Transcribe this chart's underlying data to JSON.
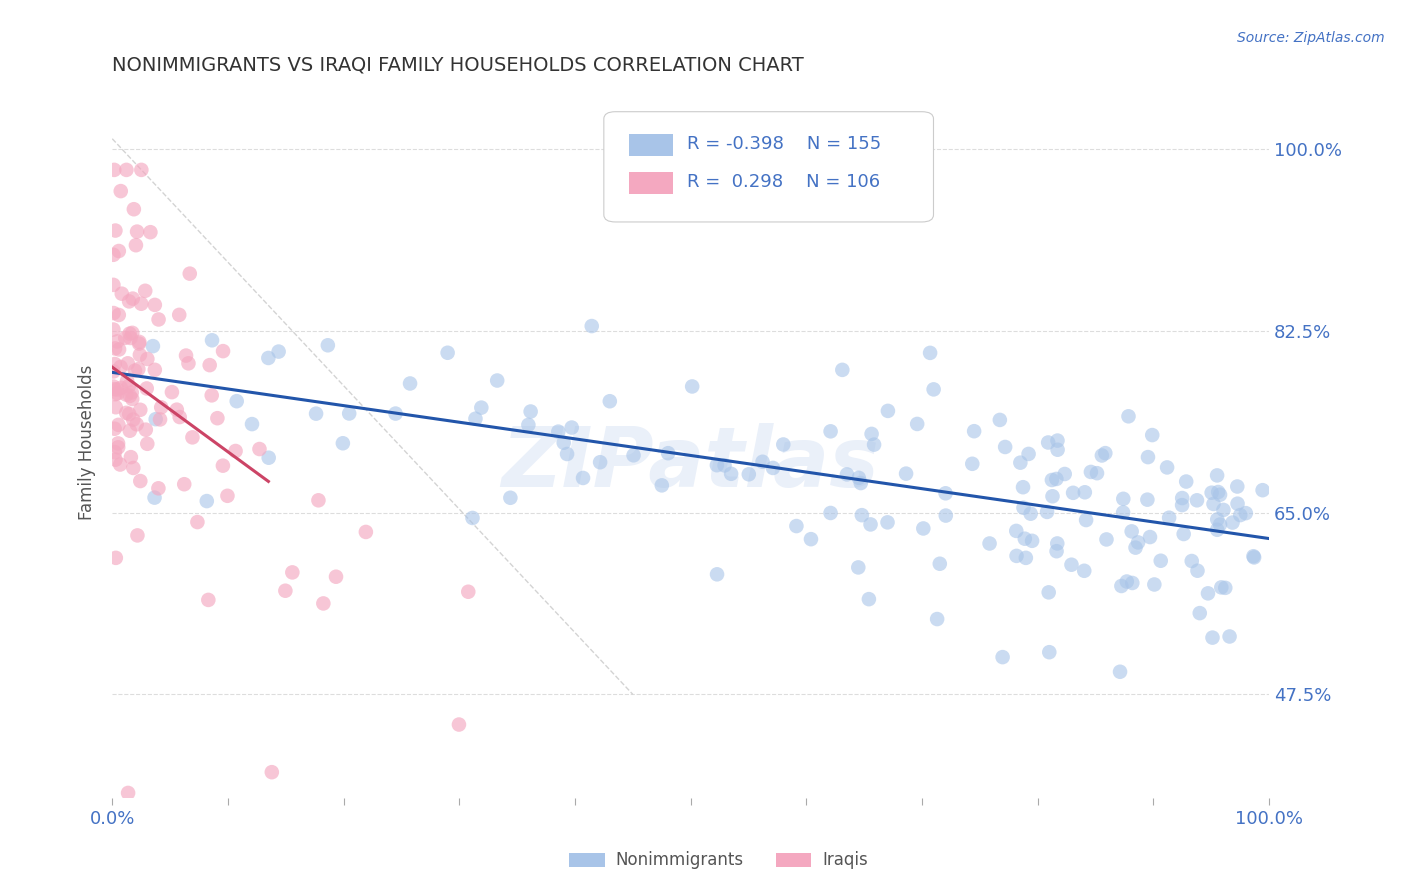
{
  "title": "NONIMMIGRANTS VS IRAQI FAMILY HOUSEHOLDS CORRELATION CHART",
  "source": "Source: ZipAtlas.com",
  "ylabel": "Family Households",
  "yticks": [
    0.475,
    0.65,
    0.825,
    1.0
  ],
  "ytick_labels": [
    "47.5%",
    "65.0%",
    "82.5%",
    "100.0%"
  ],
  "xlim": [
    0.0,
    1.0
  ],
  "ylim": [
    0.375,
    1.06
  ],
  "blue_R": -0.398,
  "blue_N": 155,
  "pink_R": 0.298,
  "pink_N": 106,
  "blue_color": "#a8c4e8",
  "pink_color": "#f4a8c0",
  "blue_line_color": "#2255aa",
  "pink_line_color": "#cc4466",
  "diagonal_color": "#cccccc",
  "legend_label_blue": "Nonimmigrants",
  "legend_label_pink": "Iraqis",
  "watermark": "ZIPatlas",
  "background_color": "#ffffff",
  "title_color": "#333333",
  "axis_label_color": "#555555",
  "tick_color": "#4472c4",
  "source_color": "#4472c4",
  "blue_trend_start_y": 0.785,
  "blue_trend_end_y": 0.625,
  "pink_trend_start_y": 0.79,
  "pink_trend_end_y": 0.68,
  "pink_trend_end_x": 0.135
}
